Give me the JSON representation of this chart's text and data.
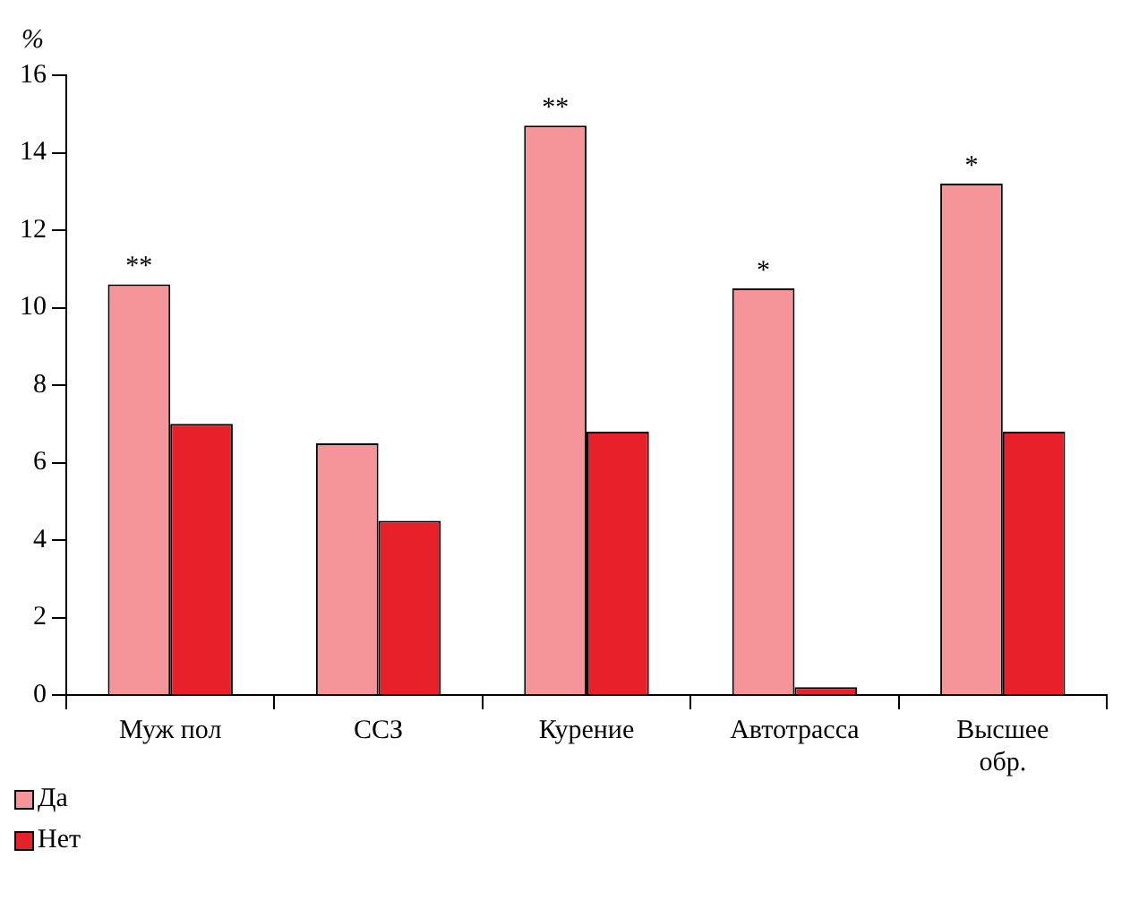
{
  "chart_data": {
    "type": "bar",
    "ylabel": "%",
    "categories": [
      "Муж пол",
      "ССЗ",
      "Курение",
      "Автотрасса",
      "Высшее обр."
    ],
    "series": [
      {
        "name": "Да",
        "color": "#f5959a",
        "values": [
          10.6,
          6.5,
          14.7,
          10.5,
          13.2
        ]
      },
      {
        "name": "Нет",
        "color": "#e8202a",
        "values": [
          7.0,
          4.5,
          6.8,
          0.2,
          6.8
        ]
      }
    ],
    "ylim": [
      0,
      16
    ],
    "yticks": [
      0,
      2,
      4,
      6,
      8,
      10,
      12,
      14,
      16
    ],
    "legend": "bottom left",
    "annotations": [
      {
        "text": "**",
        "x": "Муж пол",
        "y": 10.6
      },
      {
        "text": "**",
        "x": "Курение",
        "y": 14.7
      },
      {
        "text": "*",
        "x": "Автотрасса",
        "y": 10.5
      },
      {
        "text": "*",
        "x": "Высшее обр.",
        "y": 13.2
      }
    ]
  }
}
